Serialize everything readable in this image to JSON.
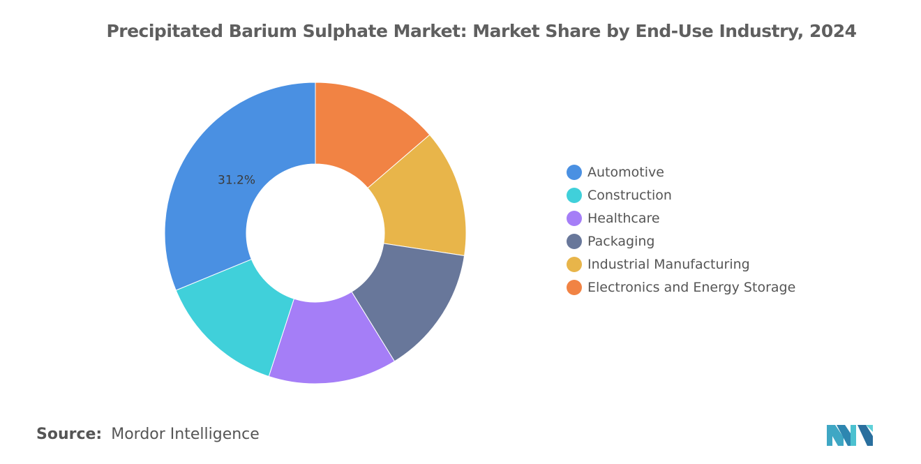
{
  "title": "Precipitated Barium Sulphate Market: Market Share by End-Use Industry, 2024",
  "source": {
    "label": "Source:",
    "value": "Mordor Intelligence"
  },
  "logo_icon": "mordor-intelligence-logo-icon",
  "chart_data": {
    "type": "pie",
    "variant": "donut",
    "title": "Precipitated Barium Sulphate Market: Market Share by End-Use Industry, 2024",
    "unit": "%",
    "legend_position": "right",
    "categories": [
      "Automotive",
      "Construction",
      "Healthcare",
      "Packaging",
      "Industrial Manufacturing",
      "Electronics and Energy Storage"
    ],
    "values": [
      31.2,
      13.8,
      13.8,
      13.8,
      13.7,
      13.7
    ],
    "colors": [
      "#4a90e2",
      "#40d0da",
      "#a57ef7",
      "#68779a",
      "#e8b54a",
      "#f18344"
    ],
    "data_labels": [
      {
        "category": "Automotive",
        "text": "31.2%"
      }
    ]
  }
}
